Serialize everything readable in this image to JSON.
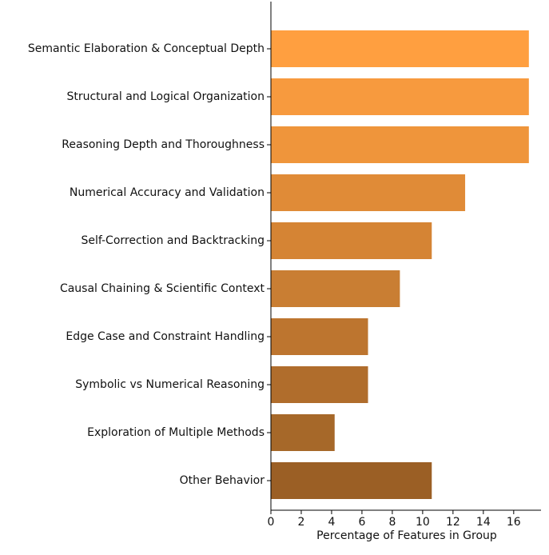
{
  "chart_data": {
    "type": "barh",
    "xlabel": "Percentage of Features in Group",
    "categories": [
      "Semantic Elaboration & Conceptual Depth",
      "Structural and Logical Organization",
      "Reasoning Depth and Thoroughness",
      "Numerical Accuracy and Validation",
      "Self-Correction and Backtracking",
      "Causal Chaining & Scientific Context",
      "Edge Case and Constraint Handling",
      "Symbolic vs Numerical Reasoning",
      "Exploration of Multiple Methods",
      "Other Behavior"
    ],
    "values": [
      17.0,
      17.0,
      17.0,
      12.8,
      10.6,
      8.5,
      6.4,
      6.4,
      4.2,
      10.6
    ],
    "colors": [
      "#ff9f40",
      "#f79a3e",
      "#ef953b",
      "#e08b37",
      "#d58434",
      "#c97e33",
      "#bd752f",
      "#b06d2c",
      "#a66829",
      "#9b5f25"
    ],
    "xlim": [
      0,
      17.8
    ],
    "xticks": [
      0,
      2,
      4,
      6,
      8,
      10,
      12,
      14,
      16
    ],
    "grid": false
  }
}
